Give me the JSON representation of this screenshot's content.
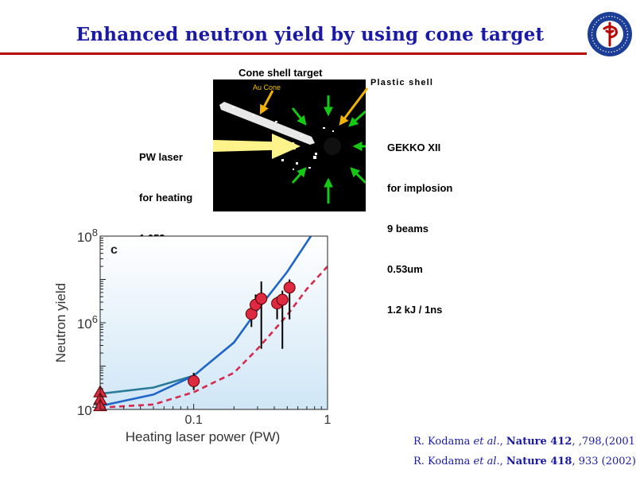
{
  "slide": {
    "title": "Enhanced neutron yield by using cone target"
  },
  "diagram": {
    "cone_shell_label": "Cone shell target",
    "au_cone_label": "Au Cone",
    "plastic_shell_label": "Plastic shell",
    "pw_laser_lines": [
      "PW laser",
      "for heating",
      "1.053um"
    ],
    "gekko_lines": [
      "GEKKO XII",
      "for implosion",
      "9 beams",
      "0.53um",
      "1.2 kJ / 1ns"
    ]
  },
  "chart_data": {
    "type": "scatter",
    "panel_label": "c",
    "xlabel": "Heating laser power (PW)",
    "ylabel": "Neutron yield",
    "xscale": "log",
    "yscale": "log",
    "xlim": [
      0.02,
      1
    ],
    "ylim": [
      10000,
      100000000
    ],
    "x_ticks": [
      {
        "value": 0.1,
        "label": "0.1"
      },
      {
        "value": 1,
        "label": "1"
      }
    ],
    "y_ticks": [
      {
        "value": 10000,
        "base": "10",
        "exp": "4"
      },
      {
        "value": 1000000,
        "base": "10",
        "exp": "6"
      },
      {
        "value": 100000000,
        "base": "10",
        "exp": "8"
      }
    ],
    "grid": false,
    "legend": false,
    "background_gradient": [
      "#ffffff",
      "#cfe6f6"
    ],
    "series": [
      {
        "kind": "line",
        "color": "#2a7a98",
        "points": [
          [
            0.02,
            23000
          ],
          [
            0.05,
            32000
          ],
          [
            0.1,
            60000
          ]
        ]
      },
      {
        "kind": "line",
        "color": "#1f66c8",
        "points": [
          [
            0.02,
            12000
          ],
          [
            0.05,
            22000
          ],
          [
            0.1,
            60000
          ],
          [
            0.2,
            350000
          ],
          [
            0.3,
            2000000
          ],
          [
            0.5,
            15000000
          ],
          [
            0.75,
            100000000
          ]
        ]
      },
      {
        "kind": "line",
        "color": "#d42a4e",
        "dashed": true,
        "points": [
          [
            0.02,
            11000
          ],
          [
            0.05,
            13000
          ],
          [
            0.1,
            25000
          ],
          [
            0.2,
            70000
          ],
          [
            0.3,
            250000
          ],
          [
            0.5,
            1500000
          ],
          [
            0.7,
            6000000
          ],
          [
            1,
            20000000
          ]
        ]
      },
      {
        "kind": "points",
        "color": "#de2a40",
        "points": [
          {
            "x": 0.1,
            "y": 45000,
            "lo": 28000,
            "hi": 70000
          },
          {
            "x": 0.27,
            "y": 1600000,
            "lo": 800000,
            "hi": 2500000
          },
          {
            "x": 0.29,
            "y": 2600000,
            "lo": 1400000,
            "hi": 4500000
          },
          {
            "x": 0.32,
            "y": 3600000,
            "lo": 250000,
            "hi": 9000000
          },
          {
            "x": 0.42,
            "y": 2800000,
            "lo": 1200000,
            "hi": 4000000
          },
          {
            "x": 0.46,
            "y": 3400000,
            "lo": 250000,
            "hi": 5500000
          },
          {
            "x": 0.52,
            "y": 6500000,
            "lo": 1200000,
            "hi": 10000000
          }
        ]
      },
      {
        "kind": "triangles",
        "color": "#de2a40",
        "points": [
          [
            0.02,
            25000
          ],
          [
            0.02,
            17000
          ],
          [
            0.02,
            12000
          ]
        ]
      }
    ]
  },
  "references": [
    {
      "author": "R. Kodama ",
      "etal": "et al.",
      "sep": ", ",
      "journal": "Nature 412",
      "pages": ", ,798,(2001)"
    },
    {
      "author": "R. Kodama ",
      "etal": "et al",
      "sep": "., ",
      "journal": "Nature 418",
      "pages": ", 933 (2002)"
    }
  ]
}
